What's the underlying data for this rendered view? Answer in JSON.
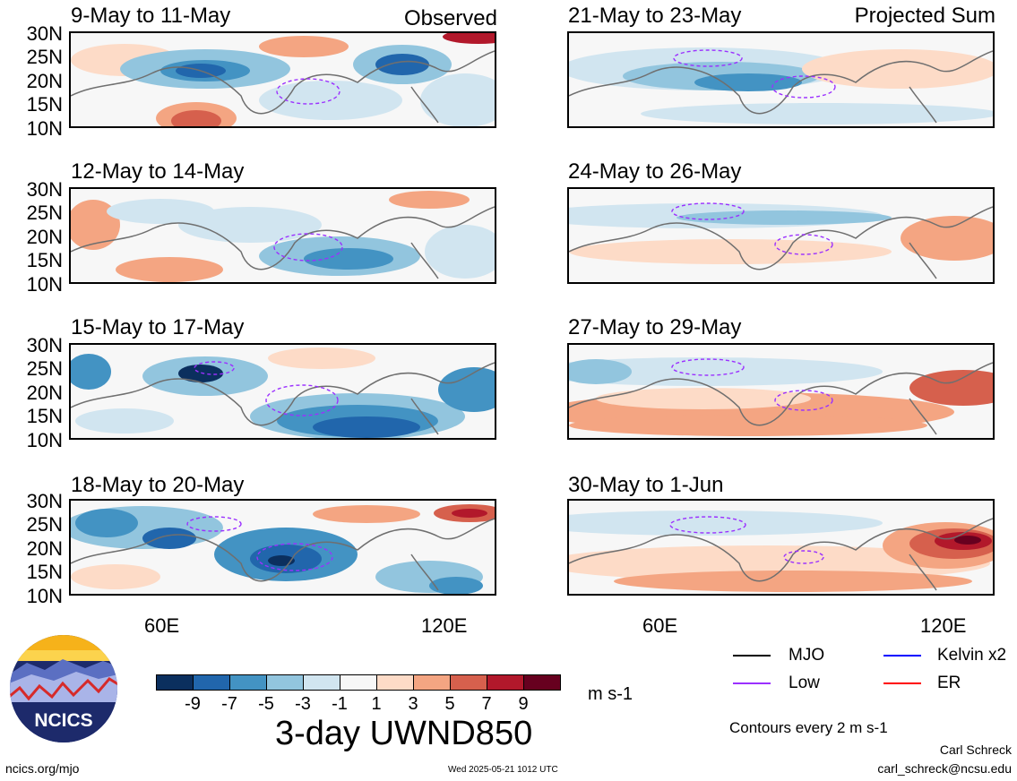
{
  "lat_labels": [
    "30N",
    "25N",
    "20N",
    "15N",
    "10N"
  ],
  "lon_labels": [
    "60E",
    "120E"
  ],
  "observed_label": "Observed",
  "projected_label": "Projected Sum",
  "panels_left": [
    {
      "title": "9-May to 11-May"
    },
    {
      "title": "12-May to 14-May"
    },
    {
      "title": "15-May to 17-May"
    },
    {
      "title": "18-May to 20-May"
    }
  ],
  "panels_right": [
    {
      "title": "21-May to 23-May"
    },
    {
      "title": "24-May to 26-May"
    },
    {
      "title": "27-May to 29-May"
    },
    {
      "title": "30-May to 1-Jun"
    }
  ],
  "colorbar": {
    "labels": [
      "-9",
      "-7",
      "-5",
      "-3",
      "-1",
      "1",
      "3",
      "5",
      "7",
      "9"
    ],
    "colors": [
      "#0b2f5e",
      "#2166ac",
      "#4393c3",
      "#92c5de",
      "#d1e5f0",
      "#f7f7f7",
      "#fddbc7",
      "#f4a582",
      "#d6604d",
      "#b2182b",
      "#67001f"
    ],
    "units": "m s-1",
    "title": "3-day UWND850"
  },
  "legend": {
    "items": [
      {
        "label": "MJO",
        "color": "#000000"
      },
      {
        "label": "Kelvin x2",
        "color": "#0000ff"
      },
      {
        "label": "Low",
        "color": "#9b30ff"
      },
      {
        "label": "ER",
        "color": "#ff0000"
      }
    ],
    "note": "Contours every 2 m s-1"
  },
  "logo_text": "NCICS",
  "footer": {
    "url": "ncics.org/mjo",
    "timestamp": "Wed 2025-05-21 1012 UTC",
    "author": "Carl Schreck",
    "email": "carl_schreck@ncsu.edu"
  }
}
